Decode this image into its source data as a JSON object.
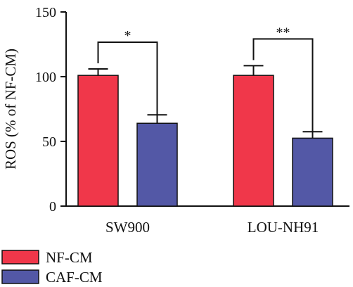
{
  "chart_data": {
    "type": "bar",
    "categories": [
      "SW900",
      "LOU-NH91"
    ],
    "series": [
      {
        "name": "NF-CM",
        "values": [
          101,
          101
        ],
        "errors": [
          5,
          7.5
        ],
        "color": "#f0374a"
      },
      {
        "name": "CAF-CM",
        "values": [
          64,
          52.5
        ],
        "errors": [
          6.5,
          5
        ],
        "color": "#5358a6"
      }
    ],
    "ylabel": "ROS (% of NF-CM)",
    "xlabel": "",
    "ylim": [
      0,
      150
    ],
    "yticks": [
      0,
      50,
      100,
      150
    ],
    "significance": [
      "*",
      "**"
    ],
    "legend_position": "bottom-left",
    "grid": false
  }
}
